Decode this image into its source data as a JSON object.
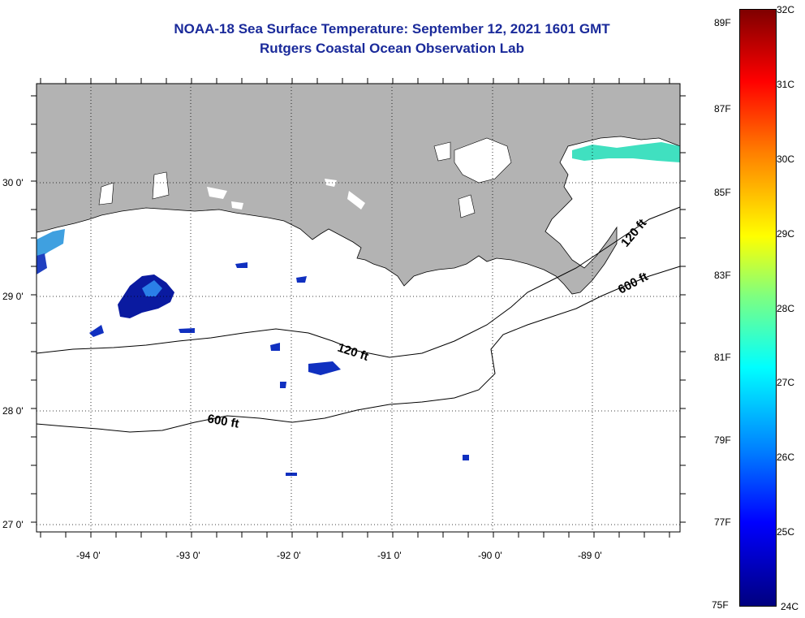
{
  "header": {
    "title": "NOAA-18 Sea Surface Temperature:  September 12, 2021 1601 GMT",
    "subtitle": "Rutgers Coastal Ocean Observation Lab"
  },
  "map": {
    "lat_labels": [
      "30 0'",
      "29 0'",
      "28 0'",
      "27 0'"
    ],
    "lon_labels": [
      "-94 0'",
      "-93 0'",
      "-92 0'",
      "-91 0'",
      "-90 0'",
      "-89 0'"
    ],
    "contour_labels": {
      "c120_east": "120 ft",
      "c600_east": "600 ft",
      "c120_mid": "120 ft",
      "c600_west": "600 ft"
    },
    "colors": {
      "land": "#b3b3b3",
      "ocean": "#ffffff"
    }
  },
  "colorbar": {
    "celsius": [
      "32C",
      "31C",
      "30C",
      "29C",
      "28C",
      "27C",
      "26C",
      "25C",
      "24C"
    ],
    "fahrenheit": [
      "89F",
      "87F",
      "85F",
      "83F",
      "81F",
      "79F",
      "77F",
      "75F"
    ]
  }
}
